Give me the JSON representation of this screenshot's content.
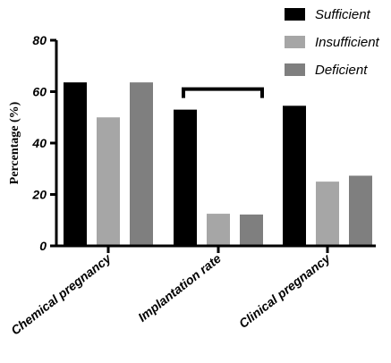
{
  "chart_data": {
    "type": "bar",
    "ylabel": "Percentage (%)",
    "xlabel": "",
    "ylim": [
      0,
      80
    ],
    "yticks": [
      0,
      20,
      40,
      60,
      80
    ],
    "grid": false,
    "legend_position": "top-right",
    "categories": [
      "Chemical pregnancy",
      "Implantation rate",
      "Clinical pregnancy"
    ],
    "series": [
      {
        "name": "Sufficient",
        "color": "#000000",
        "values": [
          63.6,
          53.0,
          54.5
        ]
      },
      {
        "name": "Insufficient",
        "color": "#a6a6a6",
        "values": [
          50.0,
          12.5,
          25.0
        ]
      },
      {
        "name": "Deficient",
        "color": "#7f7f7f",
        "values": [
          63.6,
          12.2,
          27.3
        ]
      }
    ],
    "annotations": [
      {
        "type": "significance-bracket",
        "category": "Implantation rate",
        "from_series": "Sufficient",
        "to_series": "Deficient"
      }
    ]
  }
}
